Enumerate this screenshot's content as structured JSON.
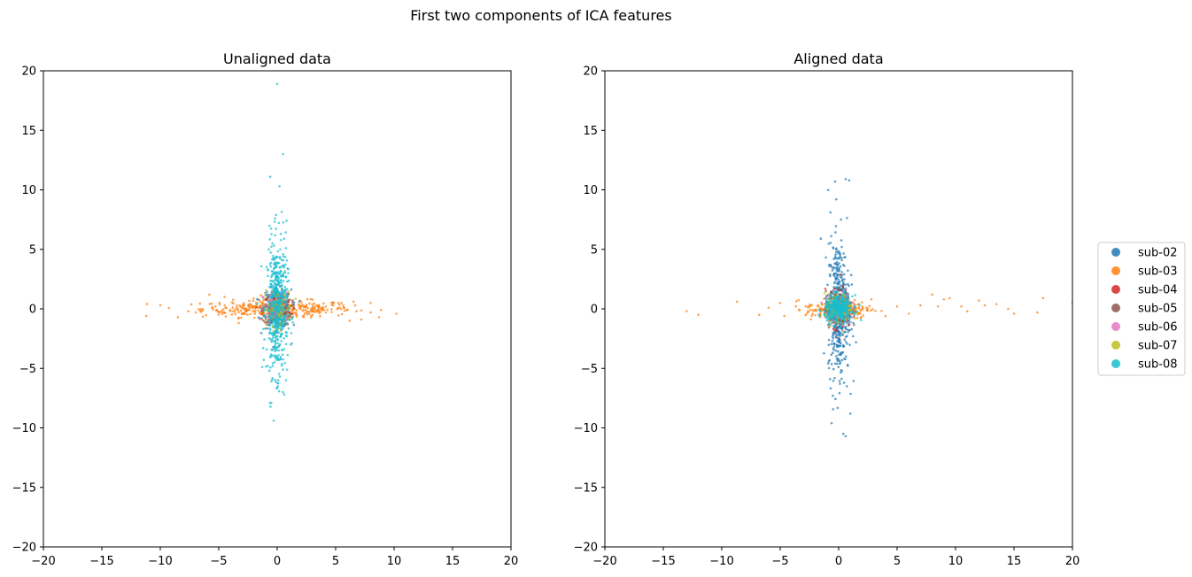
{
  "figure": {
    "suptitle": "First two components of ICA features"
  },
  "legend": {
    "placement": "right",
    "entries": [
      {
        "label": "sub-02",
        "color": "#1f77b4"
      },
      {
        "label": "sub-03",
        "color": "#ff7f0e"
      },
      {
        "label": "sub-04",
        "color": "#d62728"
      },
      {
        "label": "sub-05",
        "color": "#8c564b"
      },
      {
        "label": "sub-06",
        "color": "#e377c2"
      },
      {
        "label": "sub-07",
        "color": "#bcbd22"
      },
      {
        "label": "sub-08",
        "color": "#17becf"
      }
    ]
  },
  "chart_data": [
    {
      "type": "scatter",
      "title": "Unaligned data",
      "xlim": [
        -20,
        20
      ],
      "ylim": [
        -20,
        20
      ],
      "xticks": [
        -20,
        -15,
        -10,
        -5,
        0,
        5,
        10,
        15,
        20
      ],
      "yticks": [
        -20,
        -15,
        -10,
        -5,
        0,
        5,
        10,
        15,
        20
      ],
      "grid": false,
      "series": [
        {
          "name": "sub-03",
          "color": "#ff7f0e",
          "spread": [
            3.2,
            0.35
          ],
          "count": 380,
          "points": [
            [
              -11.2,
              -0.6
            ],
            [
              -10.0,
              0.3
            ],
            [
              -8.5,
              -0.7
            ],
            [
              -7.6,
              -0.2
            ],
            [
              -5.8,
              1.2
            ],
            [
              -4.5,
              1.0
            ],
            [
              5.5,
              0.5
            ],
            [
              6.2,
              -1.0
            ],
            [
              8.0,
              0.5
            ],
            [
              8.0,
              -0.3
            ],
            [
              10.2,
              -0.4
            ]
          ]
        },
        {
          "name": "sub-02",
          "color": "#1f77b4",
          "spread": [
            0.6,
            0.8
          ],
          "count": 200,
          "points": []
        },
        {
          "name": "sub-04",
          "color": "#d62728",
          "spread": [
            0.6,
            0.7
          ],
          "count": 120,
          "points": []
        },
        {
          "name": "sub-05",
          "color": "#8c564b",
          "spread": [
            0.6,
            0.7
          ],
          "count": 120,
          "points": []
        },
        {
          "name": "sub-06",
          "color": "#e377c2",
          "spread": [
            0.6,
            0.7
          ],
          "count": 100,
          "points": []
        },
        {
          "name": "sub-07",
          "color": "#bcbd22",
          "spread": [
            0.6,
            0.7
          ],
          "count": 120,
          "points": []
        },
        {
          "name": "sub-08",
          "color": "#17becf",
          "spread": [
            0.45,
            2.8
          ],
          "count": 500,
          "points": [
            [
              0.0,
              18.9
            ],
            [
              0.5,
              13.0
            ],
            [
              -0.6,
              11.1
            ],
            [
              0.2,
              10.3
            ],
            [
              -0.1,
              7.9
            ],
            [
              0.8,
              7.4
            ],
            [
              0.3,
              6.3
            ],
            [
              -0.4,
              5.5
            ],
            [
              -0.5,
              -7.9
            ],
            [
              0.6,
              -7.2
            ],
            [
              -0.3,
              -9.4
            ],
            [
              0.1,
              -6.0
            ],
            [
              -0.8,
              -4.8
            ],
            [
              0.5,
              -5.1
            ]
          ]
        }
      ]
    },
    {
      "type": "scatter",
      "title": "Aligned data",
      "xlim": [
        -20,
        20
      ],
      "ylim": [
        -20,
        20
      ],
      "xticks": [
        -20,
        -15,
        -10,
        -5,
        0,
        5,
        10,
        15,
        20
      ],
      "yticks": [
        -20,
        -15,
        -10,
        -5,
        0,
        5,
        10,
        15,
        20
      ],
      "grid": false,
      "series": [
        {
          "name": "sub-03",
          "color": "#ff7f0e",
          "spread": [
            1.4,
            0.4
          ],
          "count": 220,
          "points": [
            [
              -13.0,
              -0.2
            ],
            [
              -12.0,
              -0.5
            ],
            [
              -8.7,
              0.6
            ],
            [
              -6.8,
              -0.5
            ],
            [
              -6.0,
              0.1
            ],
            [
              -5.0,
              0.5
            ],
            [
              4.0,
              -0.6
            ],
            [
              5.0,
              0.2
            ],
            [
              6.0,
              -0.4
            ],
            [
              7.0,
              0.3
            ],
            [
              8.0,
              1.2
            ],
            [
              8.5,
              0.2
            ],
            [
              9.0,
              0.8
            ],
            [
              9.5,
              0.9
            ],
            [
              10.5,
              0.2
            ],
            [
              11.0,
              -0.2
            ],
            [
              12.0,
              0.7
            ],
            [
              12.5,
              0.3
            ],
            [
              13.5,
              0.4
            ],
            [
              14.5,
              0.0
            ],
            [
              15.0,
              -0.4
            ],
            [
              17.0,
              -0.3
            ],
            [
              17.5,
              0.9
            ],
            [
              20.0,
              0.5
            ]
          ]
        },
        {
          "name": "sub-02",
          "color": "#1f77b4",
          "spread": [
            0.45,
            2.8
          ],
          "count": 450,
          "points": [
            [
              -0.3,
              10.7
            ],
            [
              0.6,
              10.9
            ],
            [
              0.9,
              10.8
            ],
            [
              -0.2,
              9.2
            ],
            [
              0.2,
              7.5
            ],
            [
              -0.7,
              8.1
            ],
            [
              -0.6,
              -9.6
            ],
            [
              0.4,
              -10.5
            ],
            [
              0.6,
              -10.7
            ],
            [
              1.0,
              -8.8
            ],
            [
              -0.5,
              -7.3
            ],
            [
              0.7,
              -6.5
            ]
          ]
        },
        {
          "name": "sub-04",
          "color": "#d62728",
          "spread": [
            0.55,
            0.8
          ],
          "count": 140,
          "points": []
        },
        {
          "name": "sub-05",
          "color": "#8c564b",
          "spread": [
            0.55,
            0.8
          ],
          "count": 140,
          "points": []
        },
        {
          "name": "sub-06",
          "color": "#e377c2",
          "spread": [
            0.5,
            0.6
          ],
          "count": 100,
          "points": []
        },
        {
          "name": "sub-07",
          "color": "#bcbd22",
          "spread": [
            0.6,
            0.6
          ],
          "count": 140,
          "points": []
        },
        {
          "name": "sub-08",
          "color": "#17becf",
          "spread": [
            0.6,
            0.55
          ],
          "count": 350,
          "points": []
        }
      ]
    }
  ]
}
